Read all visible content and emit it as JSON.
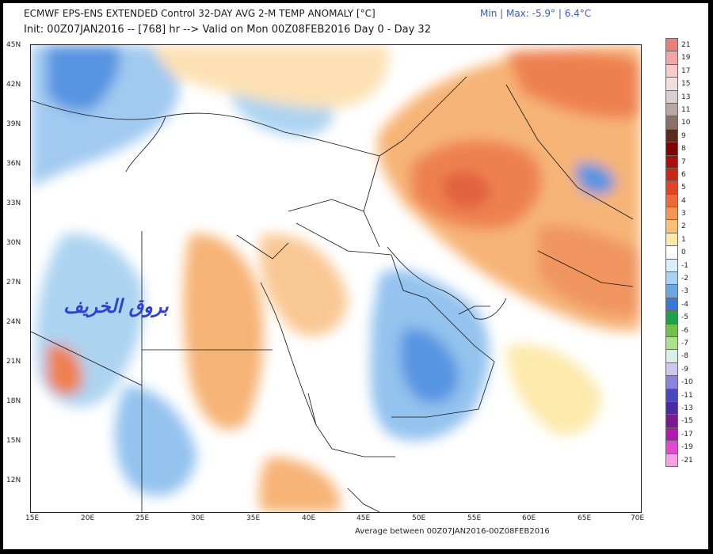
{
  "header": {
    "line1": "ECMWF EPS-ENS EXTENDED Control 32-DAY AVG 2-M TEMP ANOMALY [°C]",
    "line2": "Init: 00Z07JAN2016 -- [768] hr --> Valid on Mon 00Z08FEB2016  Day 0 - Day 32",
    "minmax": "Min | Max: -5.9° | 6.4°C"
  },
  "footer": {
    "average": "Average between 00Z07JAN2016-00Z08FEB2016"
  },
  "watermark": "بروق الخريف",
  "axes": {
    "lat_labels": [
      "45N",
      "42N",
      "39N",
      "36N",
      "33N",
      "30N",
      "27N",
      "24N",
      "21N",
      "18N",
      "15N",
      "12N"
    ],
    "lon_labels": [
      "15E",
      "20E",
      "25E",
      "30E",
      "35E",
      "40E",
      "45E",
      "50E",
      "55E",
      "60E",
      "65E",
      "70E"
    ]
  },
  "colorbar": {
    "labels": [
      "21",
      "19",
      "17",
      "15",
      "13",
      "11",
      "10",
      "9",
      "8",
      "7",
      "6",
      "5",
      "4",
      "3",
      "2",
      "1",
      "0",
      "-1",
      "-2",
      "-3",
      "-4",
      "-5",
      "-6",
      "-7",
      "-8",
      "-9",
      "-10",
      "-11",
      "-13",
      "-15",
      "-17",
      "-19",
      "-21"
    ],
    "colors": [
      "#e8807a",
      "#f0a8a4",
      "#f6cbc8",
      "#eee0dc",
      "#d8cfcf",
      "#b8a6a2",
      "#8a7068",
      "#5a2a1c",
      "#800000",
      "#a81010",
      "#c82818",
      "#e04424",
      "#ee6a38",
      "#f59650",
      "#fbc076",
      "#fde8a8",
      "#ffffff",
      "#d8eef9",
      "#a8d2f0",
      "#6fa6e6",
      "#3a78d6",
      "#1fa04c",
      "#6cc24c",
      "#aee090",
      "#dceeec",
      "#ccc8ee",
      "#8a84dc",
      "#4848c0",
      "#4a2aa0",
      "#7a1a90",
      "#b01ab0",
      "#e04ad0",
      "#f6a0e8"
    ]
  }
}
